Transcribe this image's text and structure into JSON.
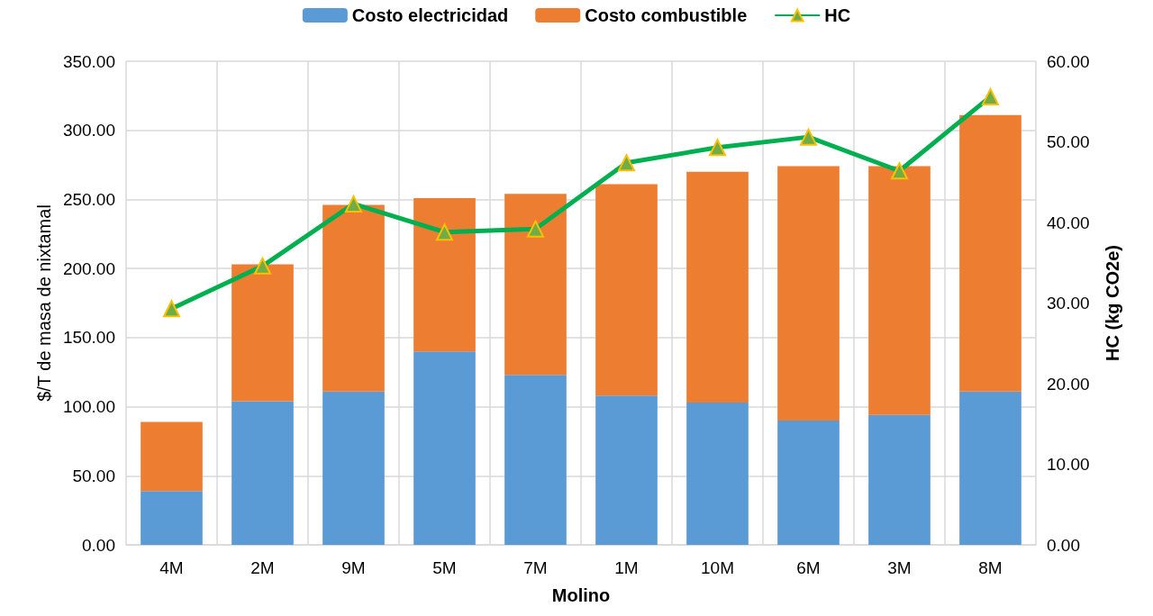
{
  "chart_data": {
    "type": "bar",
    "stacked": true,
    "xlabel": "Molino",
    "ylabel": "$/T de masa de nixtamal",
    "y2label": "HC (kg CO2e)",
    "categories": [
      "4M",
      "2M",
      "9M",
      "5M",
      "7M",
      "1M",
      "10M",
      "6M",
      "3M",
      "8M"
    ],
    "series": [
      {
        "name": "Costo electricidad",
        "color": "#5b9bd5",
        "values": [
          39,
          104,
          111,
          140,
          123,
          108,
          103,
          90,
          94,
          111
        ]
      },
      {
        "name": "Costo combustible",
        "color": "#ed7d31",
        "values": [
          50,
          99,
          135,
          111,
          131,
          153,
          167,
          184,
          180,
          200
        ]
      },
      {
        "name": "HC",
        "type": "line",
        "axis": "y2",
        "color": "#00b050",
        "marker": "triangle",
        "values": [
          29.3,
          34.6,
          42.3,
          38.8,
          39.2,
          47.4,
          49.3,
          50.6,
          46.4,
          55.6
        ]
      }
    ],
    "ylim": [
      0,
      350
    ],
    "yticks": [
      {
        "value": 0,
        "label": "0.00"
      },
      {
        "value": 50,
        "label": "50.00"
      },
      {
        "value": 100,
        "label": "100.00"
      },
      {
        "value": 150,
        "label": "150.00"
      },
      {
        "value": 200,
        "label": "200.00"
      },
      {
        "value": 250,
        "label": "250.00"
      },
      {
        "value": 300,
        "label": "300.00"
      },
      {
        "value": 350,
        "label": "350.00"
      }
    ],
    "y2lim": [
      0,
      60
    ],
    "y2ticks": [
      {
        "value": 0,
        "label": "0.00"
      },
      {
        "value": 10,
        "label": "10.00"
      },
      {
        "value": 20,
        "label": "20.00"
      },
      {
        "value": 30,
        "label": "30.00"
      },
      {
        "value": 40,
        "label": "40.00"
      },
      {
        "value": 50,
        "label": "50.00"
      },
      {
        "value": 60,
        "label": "60.00"
      }
    ],
    "grid": true,
    "legend": "top"
  }
}
